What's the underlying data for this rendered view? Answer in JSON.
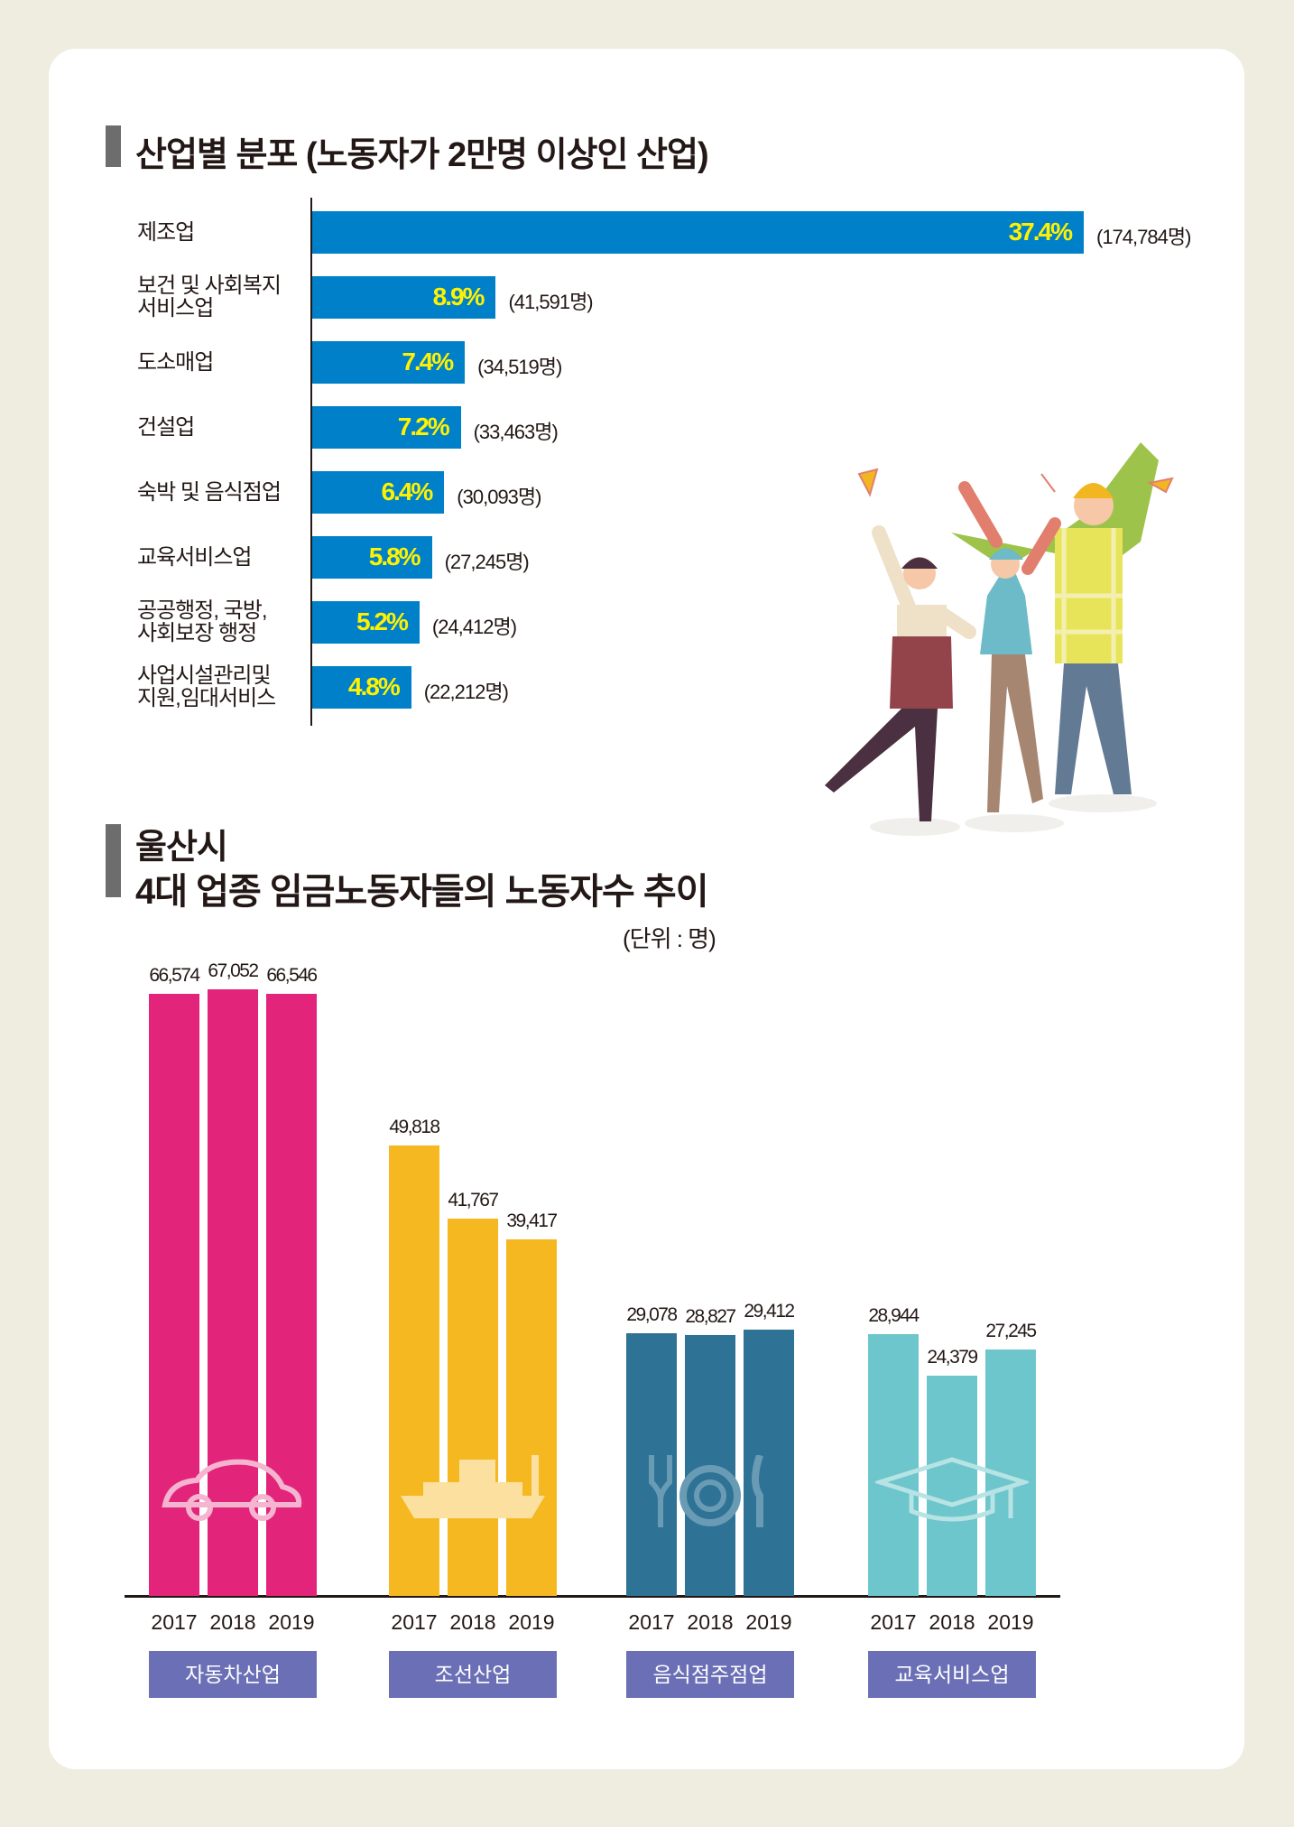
{
  "section1": {
    "title": "산업별 분포 (노동자가 2만명 이상인 산업)"
  },
  "section2": {
    "title_line1": "울산시",
    "title_line2": "4대 업종 임금노동자들의 노동자수 추이",
    "unit": "(단위 : 명)"
  },
  "chart_data": [
    {
      "type": "bar",
      "orientation": "horizontal",
      "title": "산업별 분포 (노동자가 2만명 이상인 산업)",
      "categories": [
        [
          "제조업"
        ],
        [
          "보건 및 사회복지",
          "서비스업"
        ],
        [
          "도소매업"
        ],
        [
          "건설업"
        ],
        [
          "숙박 및 음식점업"
        ],
        [
          "교육서비스업"
        ],
        [
          "공공행정, 국방,",
          "사회보장 행정"
        ],
        [
          "사업시설관리및",
          "지원,임대서비스"
        ]
      ],
      "values": [
        37.4,
        8.9,
        7.4,
        7.2,
        6.4,
        5.8,
        5.2,
        4.8
      ],
      "value_labels": [
        "37.4%",
        "8.9%",
        "7.4%",
        "7.2%",
        "6.4%",
        "5.8%",
        "5.2%",
        "4.8%"
      ],
      "count_labels": [
        "(174,784명)",
        "(41,591명)",
        "(34,519명)",
        "(33,463명)",
        "(30,093명)",
        "(27,245명)",
        "(24,412명)",
        "(22,212명)"
      ],
      "bar_color": "#0080c8",
      "label_color": "#fff200"
    },
    {
      "type": "bar",
      "title": "울산시 4대 업종 임금노동자들의 노동자수 추이",
      "unit": "(단위 : 명)",
      "groups": [
        {
          "name": "자동차산업",
          "color": "#e2257a",
          "icon": "car-icon",
          "years": [
            "2017",
            "2018",
            "2019"
          ],
          "values": [
            66574,
            67052,
            66546
          ],
          "labels": [
            "66,574",
            "67,052",
            "66,546"
          ]
        },
        {
          "name": "조선산업",
          "color": "#f5b820",
          "icon": "ship-icon",
          "years": [
            "2017",
            "2018",
            "2019"
          ],
          "values": [
            49818,
            41767,
            39417
          ],
          "labels": [
            "49,818",
            "41,767",
            "39,417"
          ]
        },
        {
          "name": "음식점주점업",
          "color": "#2e7295",
          "icon": "dining-icon",
          "years": [
            "2017",
            "2018",
            "2019"
          ],
          "values": [
            29078,
            28827,
            29412
          ],
          "labels": [
            "29,078",
            "28,827",
            "29,412"
          ]
        },
        {
          "name": "교육서비스업",
          "color": "#6cc6cb",
          "icon": "graduation-cap-icon",
          "years": [
            "2017",
            "2018",
            "2019"
          ],
          "values": [
            28944,
            24379,
            27245
          ],
          "labels": [
            "28,944",
            "24,379",
            "27,245"
          ]
        }
      ],
      "category_button_color": "#6b70b6"
    }
  ]
}
